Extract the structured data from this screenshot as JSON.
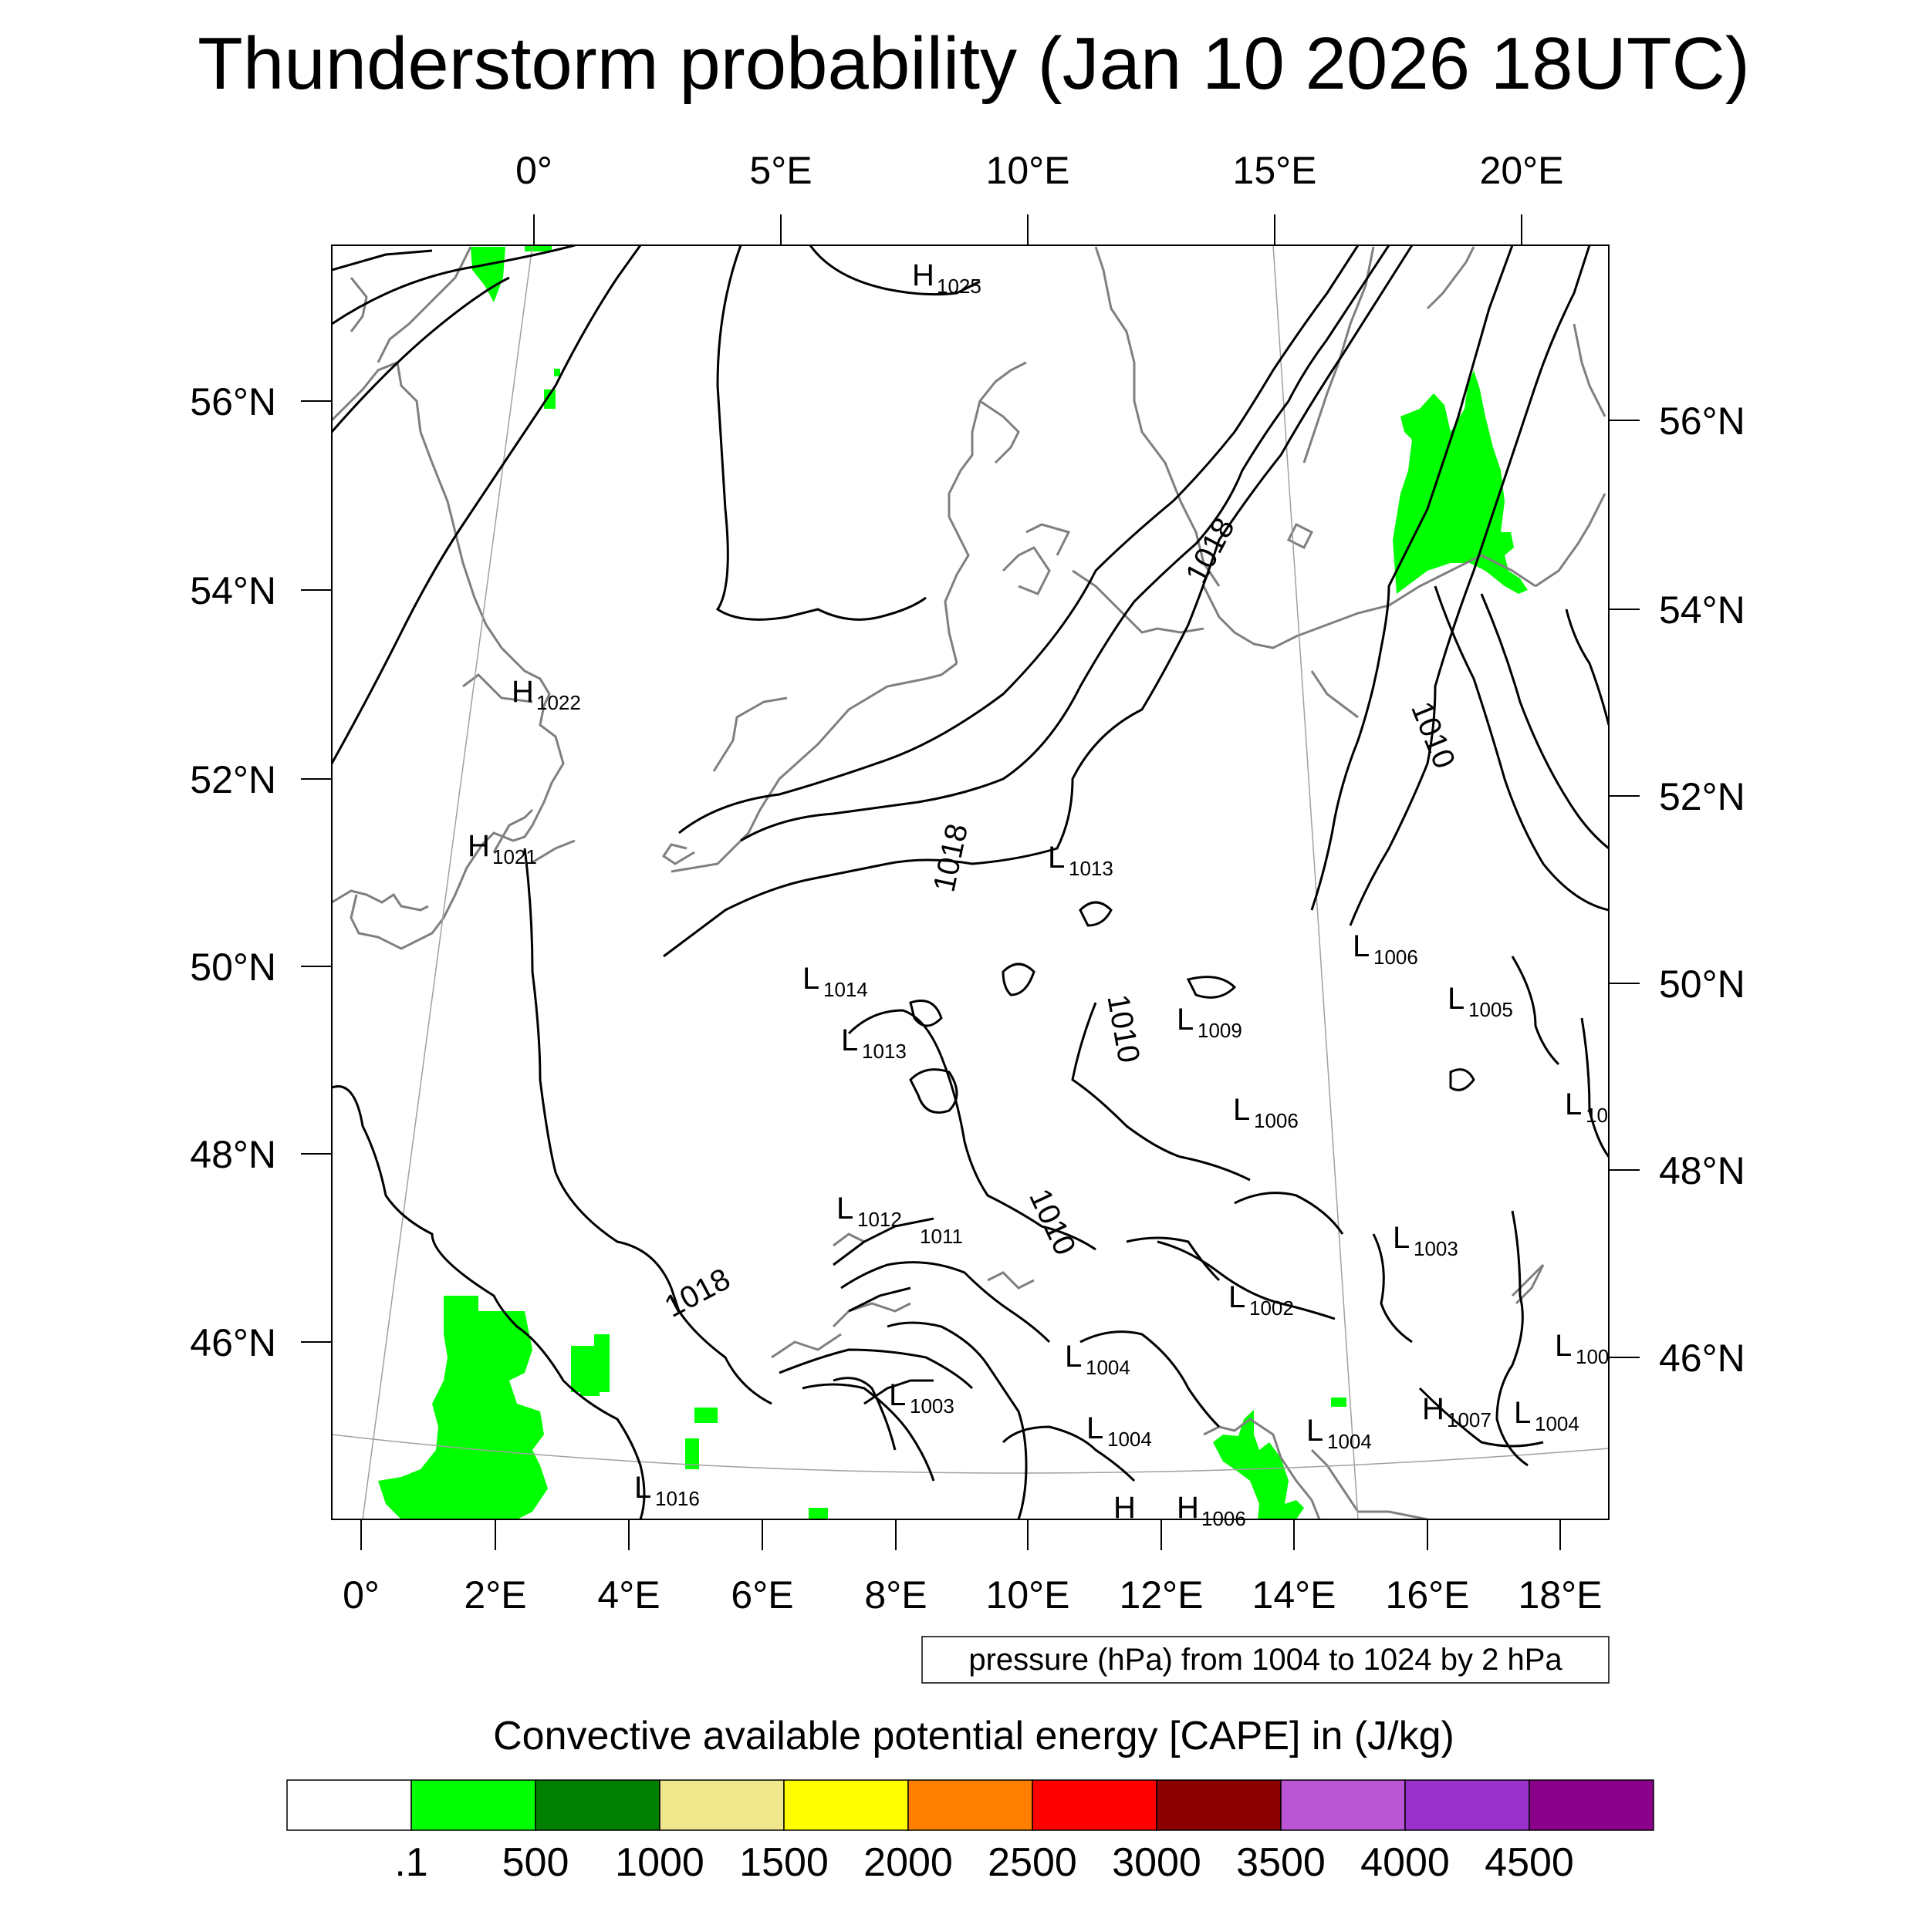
{
  "title": "Thunderstorm probability (Jan 10 2026 18UTC)",
  "top_lon_labels": [
    "0°",
    "5°E",
    "10°E",
    "15°E",
    "20°E"
  ],
  "bottom_lon_labels": [
    "0°",
    "2°E",
    "4°E",
    "6°E",
    "8°E",
    "10°E",
    "12°E",
    "14°E",
    "16°E",
    "18°E"
  ],
  "left_lat_labels": [
    "56°N",
    "54°N",
    "52°N",
    "50°N",
    "48°N",
    "46°N"
  ],
  "right_lat_labels": [
    "56°N",
    "54°N",
    "52°N",
    "50°N",
    "48°N",
    "46°N"
  ],
  "contour_info": "pressure (hPa) from 1004 to 1024 by 2 hPa",
  "colorbar": {
    "title": "Convective available potential energy [CAPE] in (J/kg)",
    "colors": [
      "#ffffff",
      "#00ff00",
      "#008000",
      "#f0e68c",
      "#ffff00",
      "#ff8000",
      "#ff0000",
      "#8b0000",
      "#ba55d3",
      "#9932cc",
      "#8b008b"
    ],
    "labels": [
      ".1",
      "500",
      "1000",
      "1500",
      "2000",
      "2500",
      "3000",
      "3500",
      "4000",
      "4500"
    ]
  },
  "pressure_labels": [
    {
      "letter": "H",
      "value": "1025"
    },
    {
      "letter": "H",
      "value": "1022"
    },
    {
      "letter": "H",
      "value": "1021"
    },
    {
      "letter": "L",
      "value": "1013"
    },
    {
      "letter": "L",
      "value": "1014"
    },
    {
      "letter": "L",
      "value": "1013"
    },
    {
      "letter": "L",
      "value": "1006"
    },
    {
      "letter": "L",
      "value": "1005"
    },
    {
      "letter": "L",
      "value": "1009"
    },
    {
      "letter": "L",
      "value": "1006"
    },
    {
      "letter": "L",
      "value": "10"
    },
    {
      "letter": "L",
      "value": "1012"
    },
    {
      "letter": "L",
      "value": "1003"
    },
    {
      "letter": "L",
      "value": "1002"
    },
    {
      "letter": "L",
      "value": "1004"
    },
    {
      "letter": "L",
      "value": "1003"
    },
    {
      "letter": "L",
      "value": "1004"
    },
    {
      "letter": "L",
      "value": "1004"
    },
    {
      "letter": "H",
      "value": "1007"
    },
    {
      "letter": "L",
      "value": "1004"
    },
    {
      "letter": "L",
      "value": "100"
    },
    {
      "letter": "L",
      "value": "1016"
    },
    {
      "letter": "H",
      "value": "1006"
    },
    {
      "letter": "H",
      "value": ""
    }
  ],
  "isobar_labels": [
    "1018",
    "1018",
    "1010",
    "1010",
    "1010",
    "1018",
    "1011"
  ]
}
